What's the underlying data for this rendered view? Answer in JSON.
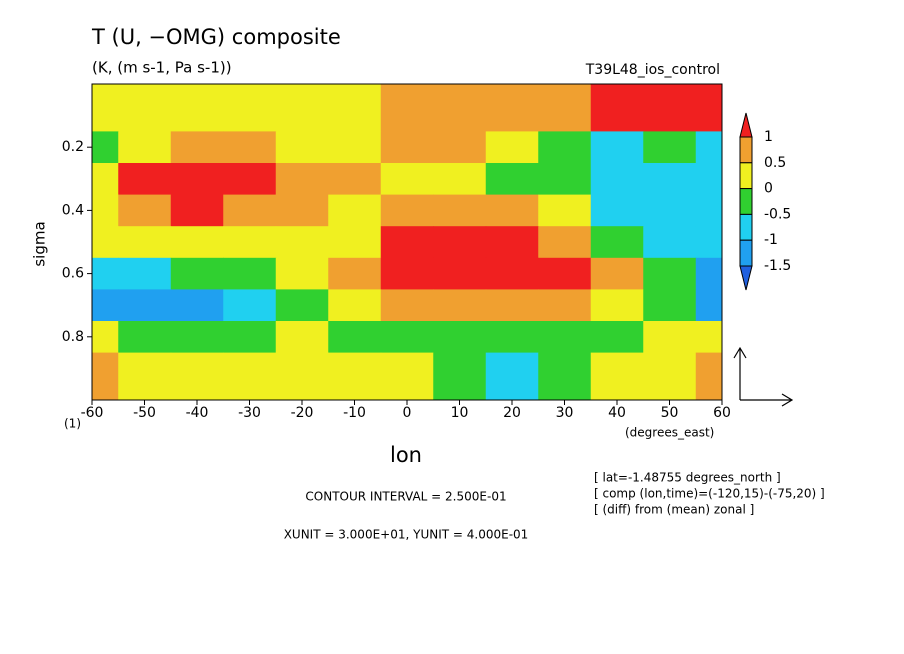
{
  "chart_data": {
    "type": "heatmap",
    "title": "T (U, −OMG) composite",
    "subtitle": "(K, (m s-1, Pa s-1))",
    "run_label": "T39L48_ios_control",
    "xlabel": "lon",
    "ylabel": "sigma",
    "x_unit_label": "(degrees_east)",
    "page_label": "(1)",
    "contour_note": "CONTOUR INTERVAL = 2.500E-01",
    "unit_note": "XUNIT = 3.000E+01, YUNIT = 4.000E-01",
    "info": [
      "[ lat=-1.48755 degrees_north ]",
      "[ comp (lon,time)=(-120,15)-(-75,20) ]",
      "[ (diff) from (mean) zonal ]"
    ],
    "x": [
      -60,
      -50,
      -40,
      -30,
      -20,
      -10,
      0,
      10,
      20,
      30,
      40,
      50,
      60
    ],
    "y": [
      0.1,
      0.2,
      0.3,
      0.4,
      0.5,
      0.6,
      0.7,
      0.8,
      0.9
    ],
    "z": [
      [
        0,
        0.2,
        0.3,
        0.2,
        0,
        0.3,
        0.7,
        0.8,
        0.7,
        0.6,
        1.1,
        1.1,
        1.1
      ],
      [
        -0.3,
        0.3,
        0.8,
        0.6,
        0.3,
        0.4,
        0.8,
        0.7,
        0.3,
        -0.3,
        -0.6,
        -0.5,
        -0.7
      ],
      [
        0.3,
        1.2,
        1.3,
        1.1,
        0.7,
        0.6,
        0.3,
        0.1,
        -0.2,
        -0.4,
        -0.7,
        -0.8,
        -0.6
      ],
      [
        0.3,
        0.8,
        1.1,
        0.6,
        0.5,
        0.3,
        0.5,
        0.7,
        0.6,
        0.3,
        -0.8,
        -1.0,
        -0.7
      ],
      [
        0,
        0.3,
        0.4,
        0.3,
        0.3,
        0.2,
        1.1,
        1.3,
        1.2,
        0.6,
        -0.3,
        -0.8,
        -0.6
      ],
      [
        -0.7,
        -0.6,
        -0.3,
        -0.2,
        0.3,
        0.7,
        1.0,
        1.3,
        1.3,
        1.2,
        0.6,
        -0.3,
        -1.1
      ],
      [
        -1.1,
        -1.3,
        -1.1,
        -0.7,
        -0.3,
        0.3,
        0.6,
        0.8,
        0.9,
        0.7,
        0.1,
        -0.3,
        -1.2
      ],
      [
        0.2,
        -0.2,
        -0.3,
        -0.2,
        0.2,
        -0.1,
        -0.2,
        -0.3,
        -0.4,
        -0.3,
        -0.2,
        0.2,
        0.1
      ],
      [
        0.6,
        0.2,
        0.1,
        0.2,
        0.1,
        0.3,
        0.2,
        -0.1,
        -0.6,
        -0.3,
        0.1,
        0.3,
        0.6
      ]
    ],
    "xlim": [
      -60,
      60
    ],
    "ylim": [
      1,
      0
    ],
    "xticks": [
      -60,
      -50,
      -40,
      -30,
      -20,
      -10,
      0,
      10,
      20,
      30,
      40,
      50,
      60
    ],
    "yticks": [
      0.2,
      0.4,
      0.6,
      0.8
    ],
    "levels": [
      1,
      0.5,
      0,
      -0.5,
      -1,
      -1.5
    ],
    "colors": [
      "#f02020",
      "#f0a030",
      "#f0f020",
      "#30d030",
      "#20d0f0",
      "#20a0f0",
      "#2060e0"
    ]
  }
}
